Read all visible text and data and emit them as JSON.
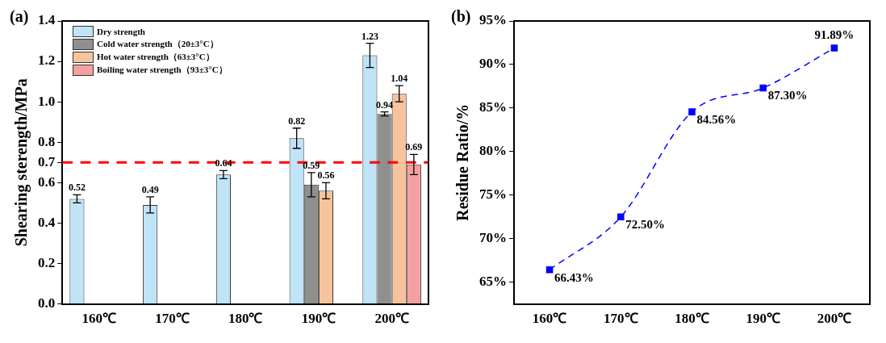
{
  "chart_data": [
    {
      "type": "bar",
      "title": "(a)",
      "ylabel": "Shearing sterength/MPa",
      "categories": [
        "160℃",
        "170℃",
        "180℃",
        "190℃",
        "200℃"
      ],
      "series": [
        {
          "name": "Dry strength",
          "color": "#bfe3f7",
          "values": [
            0.52,
            0.49,
            0.64,
            0.82,
            1.23
          ],
          "errors": [
            0.02,
            0.04,
            0.02,
            0.05,
            0.06
          ]
        },
        {
          "name": "Cold water strength（20±3°C）",
          "color": "#8f8f8f",
          "values": [
            null,
            null,
            null,
            0.59,
            0.94
          ],
          "errors": [
            null,
            null,
            null,
            0.06,
            0.01
          ]
        },
        {
          "name": "Hot water strength（63±3°C）",
          "color": "#f7c39d",
          "values": [
            null,
            null,
            null,
            0.56,
            1.04
          ],
          "errors": [
            null,
            null,
            null,
            0.04,
            0.04
          ]
        },
        {
          "name": "Boiling water strength（93±3°C）",
          "color": "#f5a0a0",
          "values": [
            null,
            null,
            null,
            null,
            0.69
          ],
          "errors": [
            null,
            null,
            null,
            null,
            0.05
          ]
        }
      ],
      "ylim": [
        0,
        1.4
      ],
      "yticks": [
        {
          "value": 0,
          "label": "0.0"
        },
        0.2,
        0.4,
        0.6,
        0.7,
        0.8,
        {
          "value": 1,
          "label": "1.0"
        },
        1.2,
        1.4
      ],
      "ref_lines": [
        {
          "axis": "y",
          "value": 0.7,
          "color": "#ff0000",
          "line_style": "dashed"
        }
      ],
      "data_labels": true,
      "legend": "top left",
      "grid": false
    },
    {
      "type": "line",
      "title": "(b)",
      "ylabel": "Residue Ratio/%",
      "categories": [
        "160℃",
        "170℃",
        "180℃",
        "190℃",
        "200℃"
      ],
      "series": [
        {
          "color": "#0000ff",
          "values": [
            66.43,
            72.5,
            84.56,
            87.3,
            91.89
          ],
          "value_labels": [
            "66.43%",
            "72.50%",
            "84.56%",
            "87.30%",
            "91.89%"
          ]
        }
      ],
      "ylim": [
        62.5,
        95
      ],
      "yticks": [
        {
          "value": 65,
          "label": "65%"
        },
        {
          "value": 70,
          "label": "70%"
        },
        {
          "value": 75,
          "label": "75%"
        },
        {
          "value": 80,
          "label": "80%"
        },
        {
          "value": 85,
          "label": "85%"
        },
        {
          "value": 90,
          "label": "90%"
        },
        {
          "value": 95,
          "label": "95%"
        }
      ],
      "marker": "square",
      "line_style": "dashed",
      "legend": false,
      "grid": false
    }
  ]
}
